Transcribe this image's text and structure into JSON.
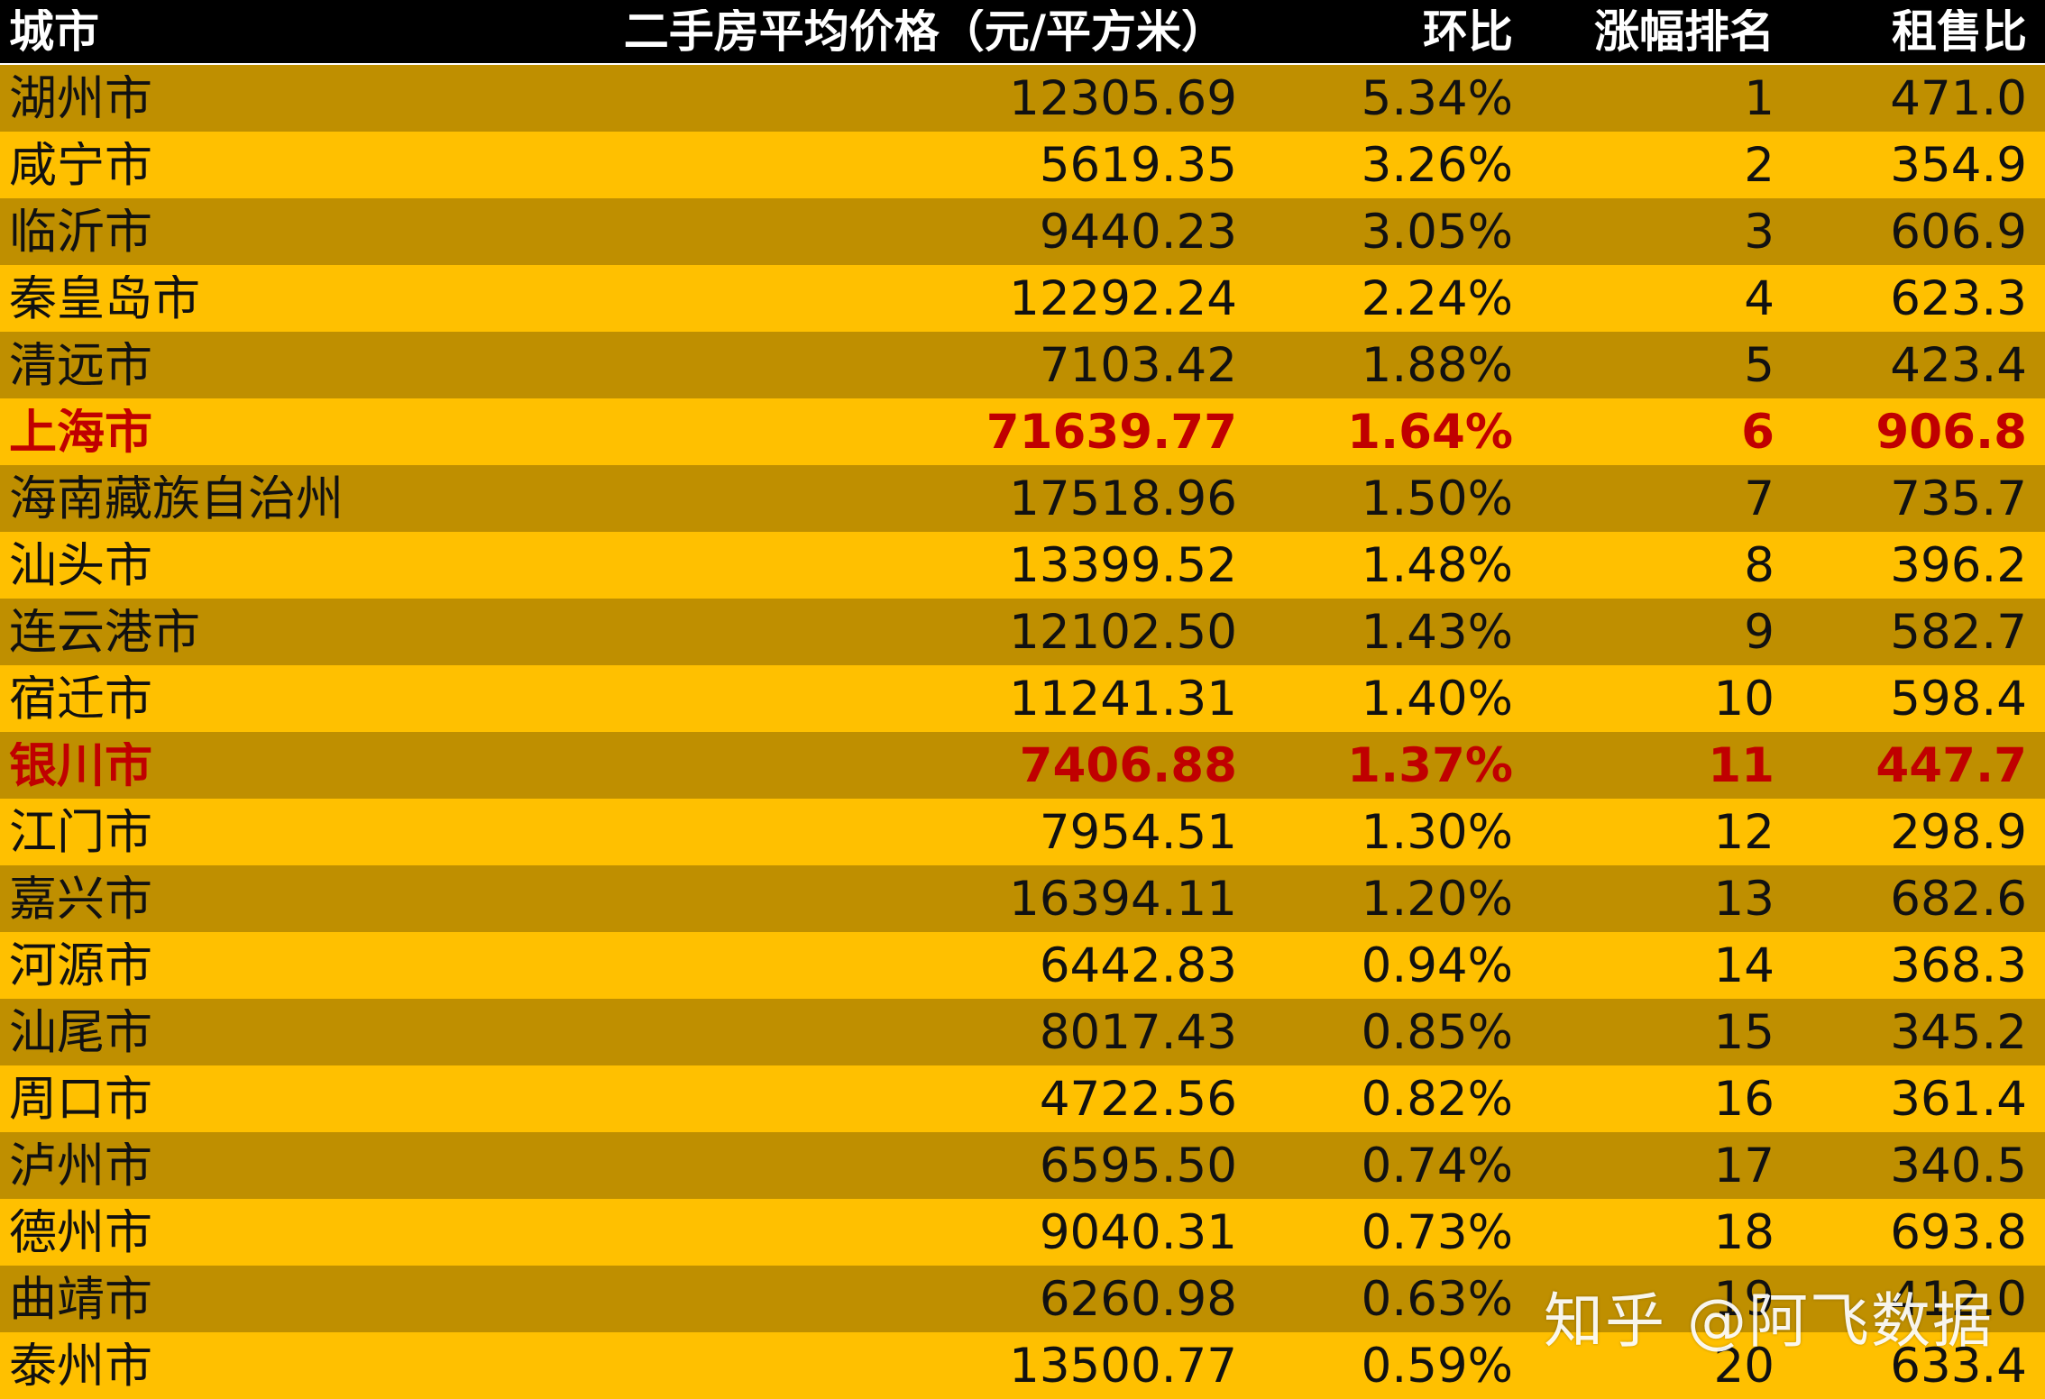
{
  "header": {
    "city": "城市",
    "price": "二手房平均价格（元/平方米）",
    "mom": "环比",
    "rank": "涨幅排名",
    "ratio": "租售比"
  },
  "rows": [
    {
      "city": "湖州市",
      "price": "12305.69",
      "mom": "5.34%",
      "rank": "1",
      "ratio": "471.0",
      "highlight": false
    },
    {
      "city": "咸宁市",
      "price": "5619.35",
      "mom": "3.26%",
      "rank": "2",
      "ratio": "354.9",
      "highlight": false
    },
    {
      "city": "临沂市",
      "price": "9440.23",
      "mom": "3.05%",
      "rank": "3",
      "ratio": "606.9",
      "highlight": false
    },
    {
      "city": "秦皇岛市",
      "price": "12292.24",
      "mom": "2.24%",
      "rank": "4",
      "ratio": "623.3",
      "highlight": false
    },
    {
      "city": "清远市",
      "price": "7103.42",
      "mom": "1.88%",
      "rank": "5",
      "ratio": "423.4",
      "highlight": false
    },
    {
      "city": "上海市",
      "price": "71639.77",
      "mom": "1.64%",
      "rank": "6",
      "ratio": "906.8",
      "highlight": true
    },
    {
      "city": "海南藏族自治州",
      "price": "17518.96",
      "mom": "1.50%",
      "rank": "7",
      "ratio": "735.7",
      "highlight": false
    },
    {
      "city": "汕头市",
      "price": "13399.52",
      "mom": "1.48%",
      "rank": "8",
      "ratio": "396.2",
      "highlight": false
    },
    {
      "city": "连云港市",
      "price": "12102.50",
      "mom": "1.43%",
      "rank": "9",
      "ratio": "582.7",
      "highlight": false
    },
    {
      "city": "宿迁市",
      "price": "11241.31",
      "mom": "1.40%",
      "rank": "10",
      "ratio": "598.4",
      "highlight": false
    },
    {
      "city": "银川市",
      "price": "7406.88",
      "mom": "1.37%",
      "rank": "11",
      "ratio": "447.7",
      "highlight": true
    },
    {
      "city": "江门市",
      "price": "7954.51",
      "mom": "1.30%",
      "rank": "12",
      "ratio": "298.9",
      "highlight": false
    },
    {
      "city": "嘉兴市",
      "price": "16394.11",
      "mom": "1.20%",
      "rank": "13",
      "ratio": "682.6",
      "highlight": false
    },
    {
      "city": "河源市",
      "price": "6442.83",
      "mom": "0.94%",
      "rank": "14",
      "ratio": "368.3",
      "highlight": false
    },
    {
      "city": "汕尾市",
      "price": "8017.43",
      "mom": "0.85%",
      "rank": "15",
      "ratio": "345.2",
      "highlight": false
    },
    {
      "city": "周口市",
      "price": "4722.56",
      "mom": "0.82%",
      "rank": "16",
      "ratio": "361.4",
      "highlight": false
    },
    {
      "city": "泸州市",
      "price": "6595.50",
      "mom": "0.74%",
      "rank": "17",
      "ratio": "340.5",
      "highlight": false
    },
    {
      "city": "德州市",
      "price": "9040.31",
      "mom": "0.73%",
      "rank": "18",
      "ratio": "693.8",
      "highlight": false
    },
    {
      "city": "曲靖市",
      "price": "6260.98",
      "mom": "0.63%",
      "rank": "19",
      "ratio": "412.0",
      "highlight": false
    },
    {
      "city": "泰州市",
      "price": "13500.77",
      "mom": "0.59%",
      "rank": "20",
      "ratio": "633.4",
      "highlight": false
    }
  ],
  "colors": {
    "header_bg": "#000000",
    "row_dark": "#bf8f00",
    "row_light": "#ffc000",
    "highlight_text": "#c00000"
  },
  "watermark": "知乎 @阿飞数据"
}
